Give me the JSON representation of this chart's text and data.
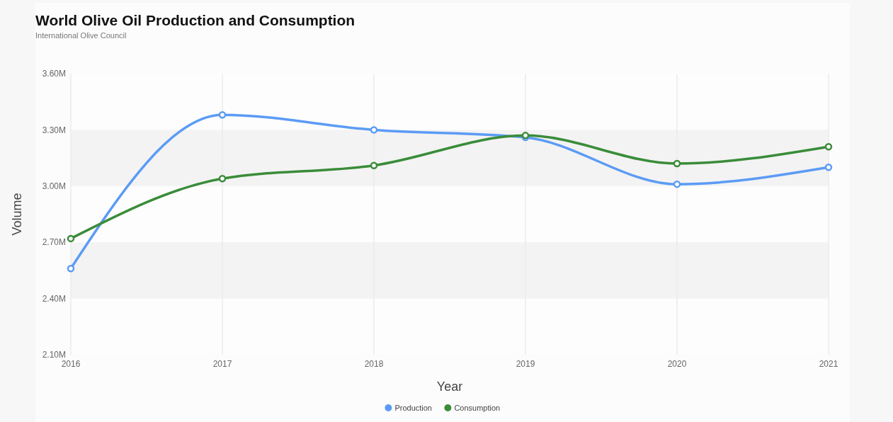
{
  "chart_data": {
    "type": "line",
    "title": "World Olive Oil Production and Consumption",
    "subtitle": "International Olive Council",
    "xlabel": "Year",
    "ylabel": "Volume",
    "categories": [
      "2016",
      "2017",
      "2018",
      "2019",
      "2020",
      "2021"
    ],
    "series": [
      {
        "name": "Production",
        "color": "#5b9bf5",
        "values": [
          2.56,
          3.38,
          3.3,
          3.26,
          3.01,
          3.1
        ]
      },
      {
        "name": "Consumption",
        "color": "#3a8c3a",
        "values": [
          2.72,
          3.04,
          3.11,
          3.27,
          3.12,
          3.21
        ]
      }
    ],
    "ylim": [
      2.1,
      3.6
    ],
    "yticks": [
      {
        "value": 2.1,
        "label": "2.10M"
      },
      {
        "value": 2.4,
        "label": "2.40M"
      },
      {
        "value": 2.7,
        "label": "2.70M"
      },
      {
        "value": 3.0,
        "label": "3.00M"
      },
      {
        "value": 3.3,
        "label": "3.30M"
      },
      {
        "value": 3.6,
        "label": "3.60M"
      }
    ],
    "bands": [
      {
        "axis": "y",
        "from": 2.4,
        "to": 2.7,
        "color": "#f3f3f3"
      },
      {
        "axis": "y",
        "from": 3.0,
        "to": 3.3,
        "color": "#f3f3f3"
      }
    ],
    "grid": "x",
    "legend": "bottom",
    "marker": "circle",
    "line_style": "solid"
  }
}
